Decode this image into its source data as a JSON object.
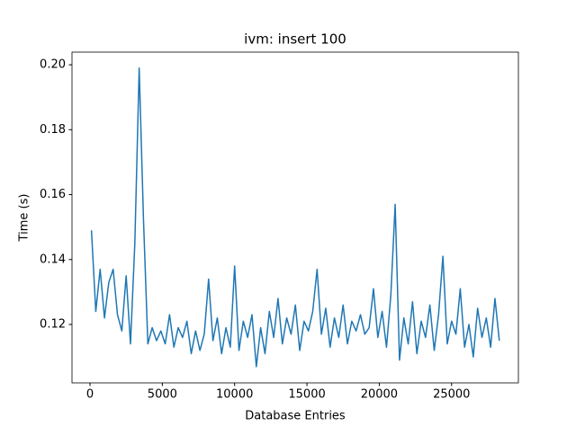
{
  "chart_data": {
    "type": "line",
    "title": "ivm: insert 100",
    "xlabel": "Database Entries",
    "ylabel": "Time (s)",
    "x": [
      100,
      400,
      700,
      1000,
      1300,
      1600,
      1900,
      2200,
      2500,
      2800,
      3100,
      3400,
      3700,
      4000,
      4300,
      4600,
      4900,
      5200,
      5500,
      5800,
      6100,
      6400,
      6700,
      7000,
      7300,
      7600,
      7900,
      8200,
      8500,
      8800,
      9100,
      9400,
      9700,
      10000,
      10300,
      10600,
      10900,
      11200,
      11500,
      11800,
      12100,
      12400,
      12700,
      13000,
      13300,
      13600,
      13900,
      14200,
      14500,
      14800,
      15100,
      15400,
      15700,
      16000,
      16300,
      16600,
      16900,
      17200,
      17500,
      17800,
      18100,
      18400,
      18700,
      19000,
      19300,
      19600,
      19900,
      20200,
      20500,
      20800,
      21100,
      21400,
      21700,
      22000,
      22300,
      22600,
      22900,
      23200,
      23500,
      23800,
      24100,
      24400,
      24700,
      25000,
      25300,
      25600,
      25900,
      26200,
      26500,
      26800,
      27100,
      27400,
      27700,
      28000,
      28300
    ],
    "series": [
      {
        "color": "#1f77b4",
        "values": [
          0.149,
          0.124,
          0.137,
          0.122,
          0.133,
          0.137,
          0.123,
          0.118,
          0.135,
          0.114,
          0.145,
          0.199,
          0.152,
          0.114,
          0.119,
          0.115,
          0.118,
          0.114,
          0.123,
          0.113,
          0.119,
          0.116,
          0.121,
          0.111,
          0.118,
          0.112,
          0.117,
          0.134,
          0.115,
          0.122,
          0.111,
          0.119,
          0.113,
          0.138,
          0.112,
          0.121,
          0.116,
          0.123,
          0.107,
          0.119,
          0.111,
          0.124,
          0.116,
          0.128,
          0.114,
          0.122,
          0.117,
          0.126,
          0.112,
          0.121,
          0.118,
          0.124,
          0.137,
          0.117,
          0.125,
          0.113,
          0.122,
          0.116,
          0.126,
          0.114,
          0.121,
          0.118,
          0.123,
          0.117,
          0.119,
          0.131,
          0.116,
          0.124,
          0.113,
          0.129,
          0.157,
          0.109,
          0.122,
          0.114,
          0.127,
          0.111,
          0.121,
          0.116,
          0.126,
          0.112,
          0.123,
          0.141,
          0.114,
          0.121,
          0.117,
          0.131,
          0.113,
          0.12,
          0.11,
          0.125,
          0.116,
          0.122,
          0.113,
          0.128,
          0.115
        ]
      }
    ],
    "xlim": [
      -1245,
      29620
    ],
    "ylim": [
      0.102,
      0.2039
    ],
    "xticks": [
      0,
      5000,
      10000,
      15000,
      20000,
      25000
    ],
    "yticks": [
      0.12,
      0.14,
      0.16,
      0.18,
      {
        "value": 0.2,
        "label": "0.20"
      }
    ]
  }
}
